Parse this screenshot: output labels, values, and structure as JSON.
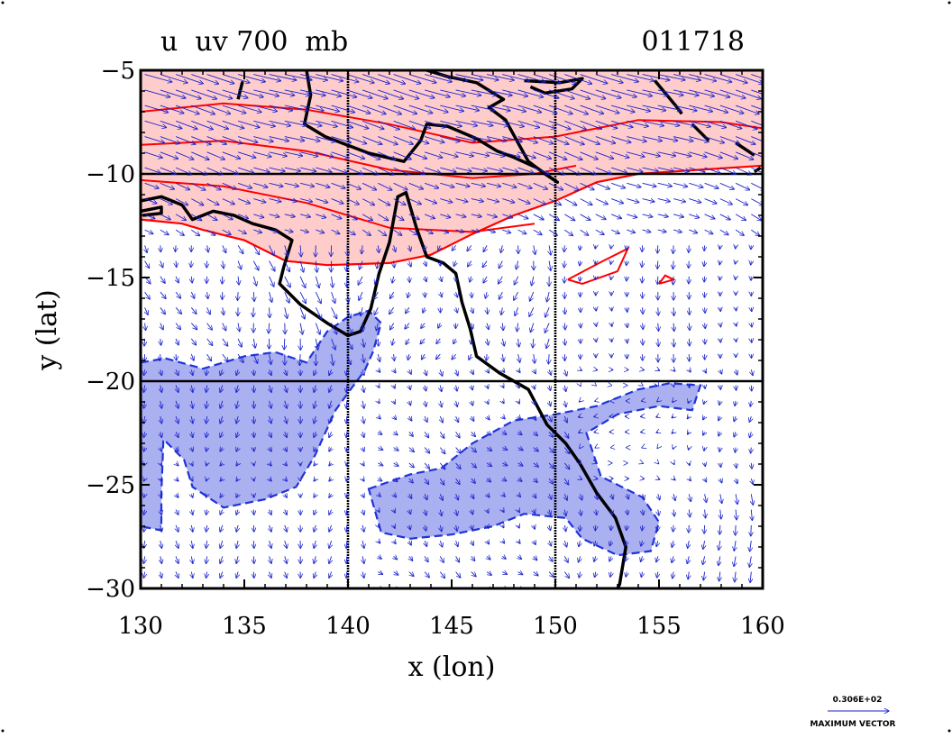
{
  "chart_data": {
    "type": "contour_vector_map",
    "title_left": "u  uv 700  mb",
    "title_right": "011718",
    "xlabel": "x (lon)",
    "ylabel": "y (lat)",
    "xlim": [
      130,
      160
    ],
    "ylim": [
      -30,
      -5
    ],
    "x_ticks": [
      130,
      135,
      140,
      145,
      150,
      155,
      160
    ],
    "y_ticks": [
      -5,
      -10,
      -15,
      -20,
      -25,
      -30
    ],
    "x_tick_labels": [
      "130",
      "135",
      "140",
      "145",
      "150",
      "155",
      "160"
    ],
    "y_tick_labels": [
      "−5",
      "−10",
      "−15",
      "−20",
      "−25",
      "−30"
    ],
    "grid_lon": [
      140,
      150
    ],
    "grid_lat": [
      -10,
      -20
    ],
    "positive_fill": "#ffcccc",
    "positive_line": "#ff0000",
    "negative_fill": "#aab0f0",
    "negative_line": "#1f33d9",
    "vector_color": "#1a22cc",
    "coast_color": "#000000",
    "max_vector_value": "0.306E+02",
    "max_vector_text": "MAXIMUM VECTOR",
    "positive_region": [
      [
        130,
        -5
      ],
      [
        160,
        -5
      ],
      [
        160,
        -9.6
      ],
      [
        157,
        -9.8
      ],
      [
        154,
        -10.0
      ],
      [
        152,
        -10.4
      ],
      [
        150,
        -11.3
      ],
      [
        148,
        -12.0
      ],
      [
        146,
        -12.9
      ],
      [
        144,
        -13.9
      ],
      [
        142,
        -14.3
      ],
      [
        139,
        -14.4
      ],
      [
        137,
        -14.2
      ],
      [
        135,
        -13.2
      ],
      [
        133,
        -12.7
      ],
      [
        132,
        -12.4
      ],
      [
        130,
        -12.2
      ]
    ],
    "positive_contours": [
      [
        [
          130,
          -7.0
        ],
        [
          134,
          -6.6
        ],
        [
          138,
          -6.9
        ],
        [
          142,
          -7.6
        ],
        [
          146,
          -8.5
        ],
        [
          150,
          -8.2
        ],
        [
          154,
          -7.4
        ],
        [
          158,
          -7.5
        ],
        [
          160,
          -7.8
        ]
      ],
      [
        [
          130,
          -8.6
        ],
        [
          134,
          -8.4
        ],
        [
          138,
          -8.9
        ],
        [
          142,
          -9.8
        ],
        [
          146,
          -10.2
        ],
        [
          149,
          -10.0
        ],
        [
          151,
          -9.6
        ]
      ],
      [
        [
          130,
          -10.3
        ],
        [
          134,
          -10.6
        ],
        [
          138,
          -11.4
        ],
        [
          142,
          -12.6
        ],
        [
          146,
          -12.8
        ],
        [
          149,
          -12.4
        ]
      ],
      [
        [
          150.6,
          -15.1
        ],
        [
          152.3,
          -14.2
        ],
        [
          153.5,
          -13.6
        ],
        [
          153.0,
          -14.7
        ],
        [
          151.3,
          -15.3
        ],
        [
          150.6,
          -15.1
        ]
      ],
      [
        [
          155.0,
          -15.3
        ],
        [
          155.7,
          -15.1
        ],
        [
          155.3,
          -14.9
        ],
        [
          155.0,
          -15.3
        ]
      ]
    ],
    "negative_regions": [
      [
        [
          130,
          -19.1
        ],
        [
          131.2,
          -18.9
        ],
        [
          133,
          -19.4
        ],
        [
          135,
          -18.8
        ],
        [
          136.5,
          -18.6
        ],
        [
          138,
          -19.1
        ],
        [
          139,
          -17.6
        ],
        [
          140,
          -16.9
        ],
        [
          141,
          -16.6
        ],
        [
          141.6,
          -17.2
        ],
        [
          141.2,
          -18.6
        ],
        [
          140.8,
          -19.5
        ],
        [
          140.2,
          -20.3
        ],
        [
          139.4,
          -21.4
        ],
        [
          138.4,
          -23.6
        ],
        [
          137.5,
          -25.1
        ],
        [
          136,
          -25.7
        ],
        [
          134,
          -26.1
        ],
        [
          132.5,
          -25.1
        ],
        [
          132.1,
          -23.8
        ],
        [
          131.1,
          -22.8
        ],
        [
          131,
          -25.4
        ],
        [
          131,
          -27.2
        ],
        [
          130,
          -27.0
        ]
      ],
      [
        [
          141,
          -25.2
        ],
        [
          143,
          -24.5
        ],
        [
          144.5,
          -24.2
        ],
        [
          146,
          -23.0
        ],
        [
          148,
          -21.9
        ],
        [
          150,
          -21.6
        ],
        [
          152,
          -21.2
        ],
        [
          154,
          -20.4
        ],
        [
          155.5,
          -20.1
        ],
        [
          157,
          -20.2
        ],
        [
          156.6,
          -21.4
        ],
        [
          155,
          -21.2
        ],
        [
          153,
          -21.6
        ],
        [
          151.5,
          -22.5
        ],
        [
          152.2,
          -24.6
        ],
        [
          154.2,
          -25.6
        ],
        [
          155,
          -26.8
        ],
        [
          154.6,
          -28.2
        ],
        [
          153,
          -28.4
        ],
        [
          151.3,
          -27.6
        ],
        [
          150.5,
          -26.6
        ],
        [
          148.5,
          -26.4
        ],
        [
          147,
          -27.0
        ],
        [
          145,
          -27.4
        ],
        [
          143,
          -27.6
        ],
        [
          141.6,
          -27.3
        ]
      ]
    ],
    "coastline_paths": [
      [
        [
          130,
          -11.3
        ],
        [
          131,
          -11.1
        ],
        [
          132,
          -11.5
        ],
        [
          132.5,
          -12.2
        ],
        [
          133.5,
          -11.8
        ],
        [
          134.5,
          -12.0
        ],
        [
          135.4,
          -12.4
        ],
        [
          136.5,
          -12.7
        ],
        [
          137.3,
          -13.2
        ],
        [
          136.9,
          -14.5
        ],
        [
          136.7,
          -15.3
        ],
        [
          137.7,
          -16.3
        ],
        [
          139,
          -17.2
        ],
        [
          140,
          -17.8
        ],
        [
          140.6,
          -17.6
        ],
        [
          141.1,
          -16.5
        ],
        [
          141.5,
          -14.8
        ],
        [
          142.0,
          -13.3
        ],
        [
          142.4,
          -11.1
        ],
        [
          142.8,
          -10.9
        ],
        [
          143.3,
          -12.6
        ],
        [
          143.8,
          -14.0
        ],
        [
          144.6,
          -14.3
        ],
        [
          145.2,
          -14.8
        ],
        [
          145.5,
          -16.2
        ],
        [
          145.9,
          -17.5
        ],
        [
          146.2,
          -18.8
        ],
        [
          147.3,
          -19.6
        ],
        [
          148.7,
          -20.4
        ],
        [
          149.6,
          -22.1
        ],
        [
          150.5,
          -23.0
        ],
        [
          151.2,
          -24.0
        ],
        [
          152.0,
          -25.4
        ],
        [
          152.9,
          -26.6
        ],
        [
          153.4,
          -28.0
        ],
        [
          153.1,
          -29.8
        ],
        [
          153.0,
          -30
        ]
      ],
      [
        [
          138.0,
          -5
        ],
        [
          138.2,
          -6.2
        ],
        [
          137.9,
          -7.6
        ],
        [
          138.9,
          -8.2
        ],
        [
          141.0,
          -9.0
        ],
        [
          142.7,
          -9.4
        ],
        [
          143.5,
          -8.4
        ],
        [
          143.8,
          -7.6
        ],
        [
          144.8,
          -7.7
        ],
        [
          146.2,
          -8.3
        ],
        [
          147.2,
          -8.9
        ],
        [
          148.0,
          -9.2
        ],
        [
          149.1,
          -9.7
        ],
        [
          150.1,
          -10.4
        ],
        [
          149.5,
          -10.0
        ],
        [
          148.7,
          -9.4
        ],
        [
          148.2,
          -8.5
        ],
        [
          147.6,
          -7.4
        ],
        [
          146.8,
          -6.8
        ],
        [
          147.5,
          -6.4
        ],
        [
          146.2,
          -5.6
        ],
        [
          144.8,
          -5.3
        ],
        [
          143.8,
          -5.0
        ]
      ],
      [
        [
          130.0,
          -11.8
        ],
        [
          131.0,
          -11.6
        ],
        [
          131.0,
          -11.9
        ],
        [
          130.1,
          -12.0
        ]
      ],
      [
        [
          134.7,
          -6.4
        ],
        [
          134.9,
          -5.6
        ],
        [
          134.7,
          -6.4
        ]
      ],
      [
        [
          148.5,
          -5.5
        ],
        [
          150.2,
          -5.6
        ],
        [
          151.3,
          -5.4
        ],
        [
          150.8,
          -5.9
        ],
        [
          149.5,
          -6.1
        ],
        [
          148.8,
          -5.8
        ]
      ],
      [
        [
          154.8,
          -5.5
        ],
        [
          155.8,
          -6.7
        ],
        [
          156.1,
          -7.1
        ]
      ],
      [
        [
          156.6,
          -7.6
        ],
        [
          157.4,
          -8.4
        ]
      ],
      [
        [
          158.7,
          -8.5
        ],
        [
          159.6,
          -9.1
        ]
      ],
      [
        [
          159.9,
          -9.7
        ],
        [
          159.6,
          -9.9
        ]
      ]
    ]
  }
}
